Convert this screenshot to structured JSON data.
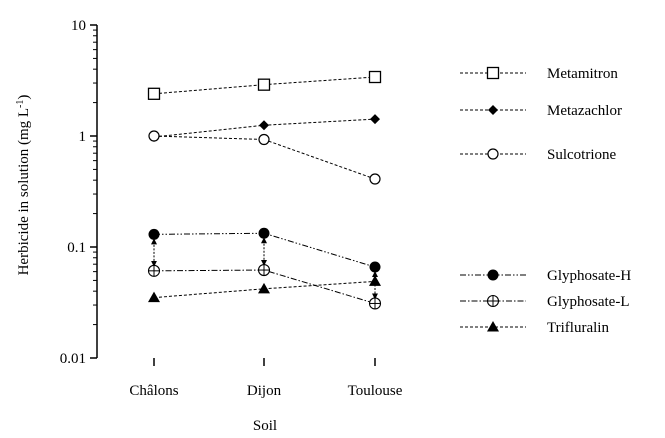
{
  "chart_data": {
    "type": "line",
    "xlabel": "Soil",
    "ylabel": "Herbicide in solution (mg L",
    "ylabel_sup": "-1",
    "ylabel_close": ")",
    "y_scale": "log",
    "ylim": [
      0.01,
      10
    ],
    "y_ticks": [
      {
        "value": 0.01,
        "label": "0.01"
      },
      {
        "value": 0.1,
        "label": "0.1"
      },
      {
        "value": 1,
        "label": "1"
      },
      {
        "value": 10,
        "label": "10"
      }
    ],
    "categories": [
      "Châlons",
      "Dijon",
      "Toulouse"
    ],
    "legend_position": "right",
    "series": [
      {
        "name": "Metamitron",
        "marker": "square-open",
        "line": "dashed",
        "values": [
          2.4,
          2.9,
          3.4
        ]
      },
      {
        "name": "Metazachlor",
        "marker": "diamond-filled",
        "line": "dashed",
        "values": [
          0.98,
          1.25,
          1.42
        ]
      },
      {
        "name": "Sulcotrione",
        "marker": "circle-open",
        "line": "dashed",
        "values": [
          1.0,
          0.93,
          0.41
        ]
      },
      {
        "name": "Glyphosate-H",
        "marker": "circle-filled",
        "line": "dashdotdot",
        "values": [
          0.13,
          0.133,
          0.066
        ]
      },
      {
        "name": "Glyphosate-L",
        "marker": "circle-crossed",
        "line": "dashdot",
        "values": [
          0.061,
          0.062,
          0.031
        ]
      },
      {
        "name": "Trifluralin",
        "marker": "triangle-filled",
        "line": "dashed",
        "values": [
          0.035,
          0.042,
          0.049
        ]
      }
    ],
    "annotations": "double-headed vertical arrows link Glyphosate-H and Glyphosate-L at each soil"
  }
}
